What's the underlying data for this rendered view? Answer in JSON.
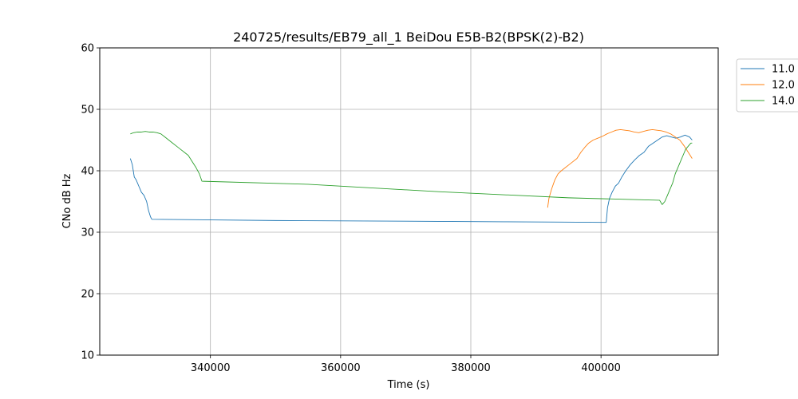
{
  "chart_data": {
    "type": "line",
    "title": "240725/results/EB79_all_1 BeiDou E5B-B2(BPSK(2)-B2)",
    "xlabel": "Time (s)",
    "ylabel": "CNo dB Hz",
    "xlim": [
      323000,
      418000
    ],
    "ylim": [
      10,
      60
    ],
    "xticks": [
      340000,
      360000,
      380000,
      400000
    ],
    "xtick_labels": [
      "340000",
      "360000",
      "380000",
      "400000"
    ],
    "yticks": [
      10,
      20,
      30,
      40,
      50,
      60
    ],
    "ytick_labels": [
      "10",
      "20",
      "30",
      "40",
      "50",
      "60"
    ],
    "grid": true,
    "legend_position": "outside-right-top",
    "series": [
      {
        "name": "11.0",
        "color": "#1f77b4",
        "points": [
          [
            327700,
            42.0
          ],
          [
            328000,
            41.0
          ],
          [
            328300,
            39.0
          ],
          [
            328600,
            38.5
          ],
          [
            329000,
            37.5
          ],
          [
            329400,
            36.5
          ],
          [
            329800,
            36.0
          ],
          [
            330200,
            35.0
          ],
          [
            330500,
            33.5
          ],
          [
            330800,
            32.5
          ],
          [
            331000,
            32.1
          ],
          [
            350000,
            31.9
          ],
          [
            370000,
            31.8
          ],
          [
            385000,
            31.7
          ],
          [
            394000,
            31.65
          ],
          [
            400800,
            31.6
          ],
          [
            401000,
            34.0
          ],
          [
            401300,
            35.5
          ],
          [
            401700,
            36.5
          ],
          [
            402200,
            37.5
          ],
          [
            402700,
            38.0
          ],
          [
            403200,
            39.0
          ],
          [
            403800,
            40.0
          ],
          [
            404500,
            41.0
          ],
          [
            405200,
            41.8
          ],
          [
            405900,
            42.5
          ],
          [
            406600,
            43.0
          ],
          [
            407300,
            44.0
          ],
          [
            408000,
            44.5
          ],
          [
            408700,
            45.0
          ],
          [
            409400,
            45.5
          ],
          [
            410100,
            45.7
          ],
          [
            410800,
            45.5
          ],
          [
            411500,
            45.3
          ],
          [
            412200,
            45.5
          ],
          [
            412900,
            45.8
          ],
          [
            413600,
            45.5
          ],
          [
            414000,
            45.0
          ]
        ]
      },
      {
        "name": "12.0",
        "color": "#ff7f0e",
        "points": [
          [
            391800,
            34.0
          ],
          [
            392000,
            35.5
          ],
          [
            392400,
            37.0
          ],
          [
            392900,
            38.5
          ],
          [
            393400,
            39.5
          ],
          [
            393900,
            40.0
          ],
          [
            394500,
            40.5
          ],
          [
            395100,
            41.0
          ],
          [
            395700,
            41.5
          ],
          [
            396300,
            42.0
          ],
          [
            396900,
            43.0
          ],
          [
            397500,
            43.8
          ],
          [
            398100,
            44.5
          ],
          [
            398800,
            45.0
          ],
          [
            399500,
            45.3
          ],
          [
            400200,
            45.6
          ],
          [
            400900,
            46.0
          ],
          [
            401600,
            46.3
          ],
          [
            402300,
            46.6
          ],
          [
            403000,
            46.7
          ],
          [
            403700,
            46.6
          ],
          [
            404400,
            46.5
          ],
          [
            405100,
            46.3
          ],
          [
            405800,
            46.2
          ],
          [
            406500,
            46.4
          ],
          [
            407200,
            46.6
          ],
          [
            407900,
            46.7
          ],
          [
            408600,
            46.6
          ],
          [
            409300,
            46.5
          ],
          [
            410000,
            46.3
          ],
          [
            410700,
            46.0
          ],
          [
            411400,
            45.5
          ],
          [
            412100,
            45.0
          ],
          [
            412800,
            44.0
          ],
          [
            413400,
            43.0
          ],
          [
            414000,
            42.0
          ]
        ]
      },
      {
        "name": "14.0",
        "color": "#2ca02c",
        "points": [
          [
            327700,
            46.0
          ],
          [
            328200,
            46.2
          ],
          [
            328800,
            46.3
          ],
          [
            329400,
            46.3
          ],
          [
            330000,
            46.4
          ],
          [
            330600,
            46.3
          ],
          [
            331200,
            46.3
          ],
          [
            331800,
            46.2
          ],
          [
            332400,
            46.0
          ],
          [
            333000,
            45.5
          ],
          [
            333600,
            45.0
          ],
          [
            334200,
            44.5
          ],
          [
            334800,
            44.0
          ],
          [
            335400,
            43.5
          ],
          [
            336000,
            43.0
          ],
          [
            336600,
            42.5
          ],
          [
            337200,
            41.5
          ],
          [
            337800,
            40.5
          ],
          [
            338300,
            39.5
          ],
          [
            338700,
            38.3
          ],
          [
            355000,
            37.8
          ],
          [
            375000,
            36.6
          ],
          [
            395000,
            35.6
          ],
          [
            409000,
            35.2
          ],
          [
            409400,
            34.5
          ],
          [
            409800,
            35.0
          ],
          [
            410200,
            36.0
          ],
          [
            410600,
            37.0
          ],
          [
            411000,
            38.0
          ],
          [
            411400,
            39.5
          ],
          [
            411800,
            40.5
          ],
          [
            412200,
            41.5
          ],
          [
            412600,
            42.5
          ],
          [
            413000,
            43.5
          ],
          [
            413400,
            44.0
          ],
          [
            413800,
            44.5
          ],
          [
            414000,
            44.5
          ]
        ]
      }
    ]
  }
}
